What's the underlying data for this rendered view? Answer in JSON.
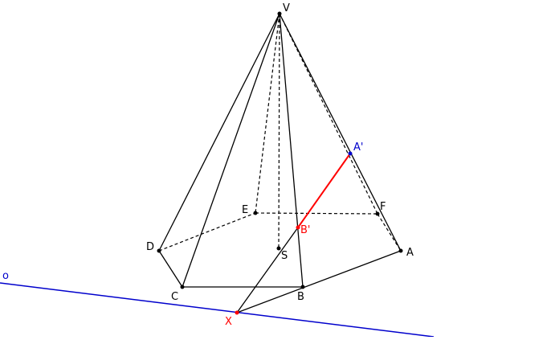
{
  "figure": {
    "vertices": {
      "V": "V",
      "A": "A",
      "B": "B",
      "C": "C",
      "D": "D",
      "E": "E",
      "F": "F",
      "S": "S",
      "A_prime": "A'",
      "B_prime": "B'",
      "X": "X"
    },
    "line_label": "o"
  },
  "colors": {
    "edges": "#000000",
    "line_o": "#0000cc",
    "red_segment": "#ff0000",
    "label_default": "#000000",
    "label_A_prime": "#0000cc",
    "label_red": "#ff0000"
  }
}
